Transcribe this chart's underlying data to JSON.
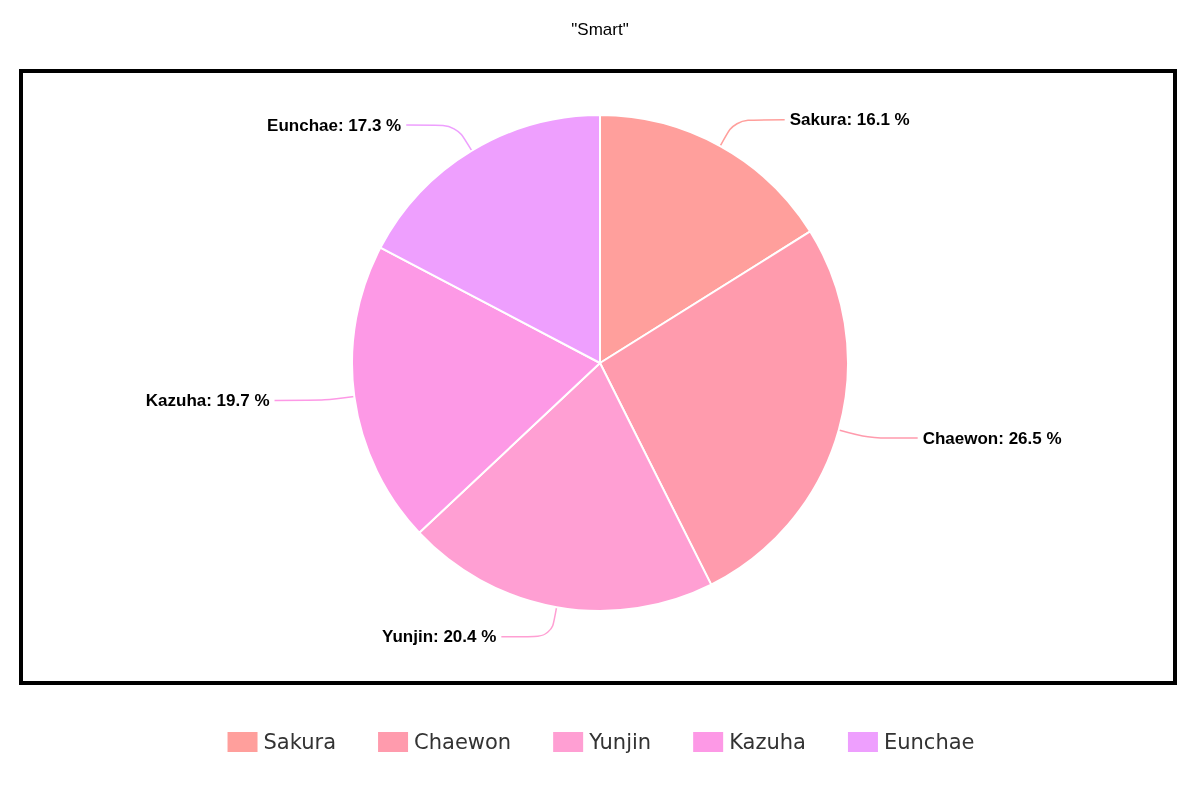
{
  "chart_data": {
    "type": "pie",
    "title": "\"Smart\"",
    "categories": [
      "Sakura",
      "Chaewon",
      "Yunjin",
      "Kazuha",
      "Eunchae"
    ],
    "values": [
      16.1,
      26.5,
      20.4,
      19.7,
      17.3
    ],
    "colors": [
      "#ff9f9c",
      "#ff9bad",
      "#ff9fd3",
      "#fd99e6",
      "#ee9ffe"
    ],
    "value_labels": [
      "Sakura: 16.1 %",
      "Chaewon: 26.5 %",
      "Yunjin: 20.4 %",
      "Kazuha: 19.7 %",
      "Eunchae: 17.3 %"
    ],
    "legend": "bottom"
  }
}
